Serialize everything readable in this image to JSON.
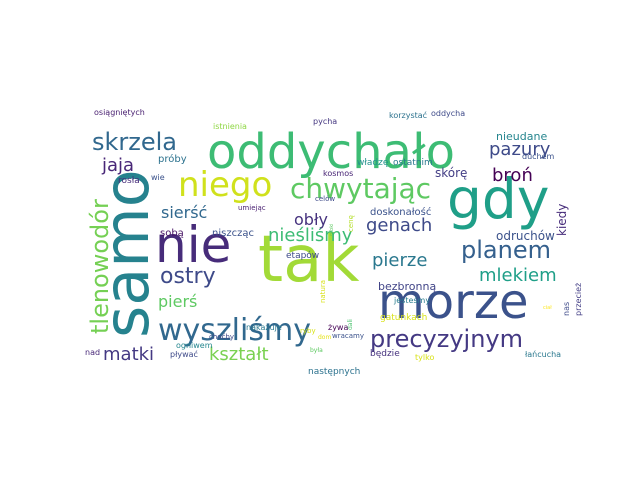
{
  "cloud": {
    "words": [
      {
        "text": "nie",
        "color": "#472c7a"
      },
      {
        "text": "tak",
        "color": "#a2da37"
      },
      {
        "text": "morze",
        "color": "#3b528b"
      },
      {
        "text": "samo",
        "color": "#26828e"
      },
      {
        "text": "oddychało",
        "color": "#3dbc74"
      },
      {
        "text": "gdy",
        "color": "#1f9f88"
      },
      {
        "text": "niego",
        "color": "#d0e11c"
      },
      {
        "text": "wyszliśmy",
        "color": "#31688e"
      },
      {
        "text": "precyzyjnym",
        "color": "#443983"
      },
      {
        "text": "skrzela",
        "color": "#31688e"
      },
      {
        "text": "chwytając",
        "color": "#5ec962"
      },
      {
        "text": "tlenowodór",
        "color": "#75d054"
      },
      {
        "text": "planem",
        "color": "#35608d"
      },
      {
        "text": "ostry",
        "color": "#3e4a89"
      },
      {
        "text": "nieśliśmy",
        "color": "#3dbc74"
      },
      {
        "text": "jaja",
        "color": "#482677"
      },
      {
        "text": "pazury",
        "color": "#3e4a89"
      },
      {
        "text": "broń",
        "color": "#440154"
      },
      {
        "text": "sierść",
        "color": "#31688e"
      },
      {
        "text": "genach",
        "color": "#3e4a89"
      },
      {
        "text": "pierze",
        "color": "#2a788e"
      },
      {
        "text": "mlekiem",
        "color": "#1f9f88"
      },
      {
        "text": "kształt",
        "color": "#7ad151"
      },
      {
        "text": "matki",
        "color": "#443983"
      },
      {
        "text": "pierś",
        "color": "#5ec962"
      },
      {
        "text": "obły",
        "color": "#46327e"
      },
      {
        "text": "skórę",
        "color": "#433e85"
      },
      {
        "text": "odruchów",
        "color": "#3b528b"
      },
      {
        "text": "nieudane",
        "color": "#25858e"
      },
      {
        "text": "kiedy",
        "color": "#472d7b"
      },
      {
        "text": "bezbronną",
        "color": "#414487"
      },
      {
        "text": "doskonałość",
        "color": "#3b528b"
      },
      {
        "text": "gatunkach",
        "color": "#d8e219"
      },
      {
        "text": "sobą",
        "color": "#471365"
      },
      {
        "text": "niszcząc",
        "color": "#3b528b"
      },
      {
        "text": "etapów",
        "color": "#3e4a89"
      },
      {
        "text": "ostatnim",
        "color": "#2a788e"
      },
      {
        "text": "władzę",
        "color": "#21918c"
      },
      {
        "text": "kosmos",
        "color": "#482475"
      },
      {
        "text": "próby",
        "color": "#2c728e"
      },
      {
        "text": "rosła",
        "color": "#472d7b"
      },
      {
        "text": "wie",
        "color": "#3b528b"
      },
      {
        "text": "umiejąc",
        "color": "#481f70"
      },
      {
        "text": "celów",
        "color": "#3e4a89"
      },
      {
        "text": "jesteśmy",
        "color": "#287c8e"
      },
      {
        "text": "następnych",
        "color": "#2c728e"
      },
      {
        "text": "będzie",
        "color": "#46327e"
      },
      {
        "text": "osiągniętych",
        "color": "#481f70"
      },
      {
        "text": "istnienia",
        "color": "#8fd744"
      },
      {
        "text": "pycha",
        "color": "#453781"
      },
      {
        "text": "korzystać",
        "color": "#2c728e"
      },
      {
        "text": "oddycha",
        "color": "#3e4a89"
      },
      {
        "text": "duchem",
        "color": "#3b528b"
      },
      {
        "text": "ogniwem",
        "color": "#24868e"
      },
      {
        "text": "choćby",
        "color": "#3e4a89"
      },
      {
        "text": "nakazuje",
        "color": "#2a788e"
      },
      {
        "text": "żywa",
        "color": "#440154"
      },
      {
        "text": "wracamy",
        "color": "#3b528b"
      },
      {
        "text": "nad",
        "color": "#482878"
      },
      {
        "text": "pływać",
        "color": "#3e4a89"
      },
      {
        "text": "tylko",
        "color": "#d8e219"
      },
      {
        "text": "łańcucha",
        "color": "#2a788e"
      },
      {
        "text": "nas",
        "color": "#3e4a89"
      },
      {
        "text": "przecież",
        "color": "#433e85"
      },
      {
        "text": "natura",
        "color": "#d8e219"
      },
      {
        "text": "cenę",
        "color": "#b5de2b"
      },
      {
        "text": "ryby",
        "color": "#d8e219"
      },
      {
        "text": "dali",
        "color": "#4ac16d"
      },
      {
        "text": "była",
        "color": "#5ec962"
      },
      {
        "text": "dom",
        "color": "#e5e419"
      },
      {
        "text": "ciał",
        "color": "#fde725"
      },
      {
        "text": "rybki",
        "color": "#5ec962"
      }
    ]
  }
}
